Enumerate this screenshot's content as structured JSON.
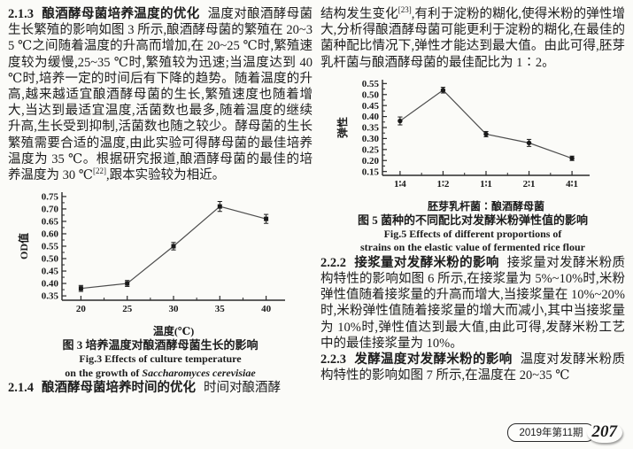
{
  "left_column": {
    "s213_num": "2.1.3",
    "s213_heading": "酿酒酵母菌培养温度的优化",
    "s213_body1": "温度对酿酒酵母菌生长繁殖的影响如图 3 所示,酿酒酵母菌的繁殖在 20~35 ℃之间随着温度的升高而增加,在 20~25 ℃时,繁殖速度较为缓慢,25~35 ℃时,繁殖较为迅速;当温度达到 40 ℃时,培养一定的时间后有下降的趋势。随着温度的升高,越来越适宜酿酒酵母菌的生长,繁殖速度也随着增大,当达到最适宜温度,活菌数也最多,随着温度的继续升高,生长受到抑制,活菌数也随之较少。酵母菌的生长繁殖需要合适的温度,由此实验可得酵母菌的最佳培养温度为 35 ℃。根据研究报道,酿酒酵母菌的最佳的培养温度为 30 ℃",
    "s213_ref": "[22]",
    "s213_body2": ",跟本实验较为相近。",
    "fig3_caption_zh": "图 3  培养温度对酿酒酵母菌生长的影响",
    "fig3_caption_en_line1": "Fig.3  Effects of culture temperature",
    "fig3_caption_en_line2_prefix": "on the growth of ",
    "fig3_caption_en_line2_species": "Saccharomyces cerevisiae",
    "s214_num": "2.1.4",
    "s214_heading": "酿酒酵母菌培养时间的优化",
    "s214_body": "时间对酿酒酵"
  },
  "right_column": {
    "cont_body1": "结构发生变化",
    "cont_ref": "[23]",
    "cont_body2": ",有利于淀粉的糊化,使得米粉的弹性增大,分析得酿酒酵母菌可能更利于淀粉的糊化,在最佳的菌种配比情况下,弹性才能达到最大值。由此可得,胚芽乳杆菌与酿酒酵母菌的最佳配比为 1∶2。",
    "fig5_caption_zh": "图 5  菌种的不同配比对发酵米粉弹性值的影响",
    "fig5_caption_en_line1": "Fig.5  Effects of different proportions of",
    "fig5_caption_en_line2": "strains on the elastic value of fermented rice flour",
    "s222_num": "2.2.2",
    "s222_heading": "接浆量对发酵米粉的影响",
    "s222_body": "接浆量对发酵米粉质构特性的影响如图 6 所示,在接浆量为 5%~10%时,米粉弹性值随着接浆量的升高而增大,当接浆量在 10%~20%时,米粉弹性值随着接浆量的增大而减小,其中当接浆量为 10%时,弹性值达到最大值,由此可得,发酵米粉工艺中的最佳接浆量为 10%。",
    "s223_num": "2.2.3",
    "s223_heading": "发酵温度对发酵米粉的影响",
    "s223_body": "温度对发酵米粉质构特性的影响如图 7 所示,在温度在 20~35 ℃"
  },
  "footer": {
    "issue": "2019年第11期",
    "page_number": "207"
  },
  "chart_data": [
    {
      "type": "line",
      "figure": "Fig.3",
      "x_ticks": [
        "20",
        "25",
        "30",
        "35",
        "40"
      ],
      "values": [
        0.38,
        0.4,
        0.55,
        0.71,
        0.66
      ],
      "errors": [
        0.012,
        0.012,
        0.015,
        0.02,
        0.018
      ],
      "xlabel": "温度(℃)",
      "ylabel": "OD值",
      "ylim": [
        0.35,
        0.75
      ],
      "ytick_step": 0.05,
      "marker": "square",
      "line_color": "#4d4d4d",
      "marker_color": "#1a1a1a",
      "axis_color": "#2a2a2a",
      "grid": "off",
      "legend": "none"
    },
    {
      "type": "line",
      "figure": "Fig.5",
      "x_ticks": [
        "1∶4",
        "1∶2",
        "1∶1",
        "2∶1",
        "4∶1"
      ],
      "values": [
        0.38,
        0.52,
        0.32,
        0.28,
        0.21
      ],
      "errors": [
        0.018,
        0.013,
        0.012,
        0.016,
        0.01
      ],
      "xlabel": "胚芽乳杆菌∶酿酒酵母菌",
      "ylabel": "弹性",
      "ylim": [
        0.15,
        0.55
      ],
      "ytick_step": 0.05,
      "marker": "circle",
      "line_color": "#4d4d4d",
      "marker_color": "#1a1a1a",
      "axis_color": "#2a2a2a",
      "grid": "off",
      "legend": "none"
    }
  ]
}
